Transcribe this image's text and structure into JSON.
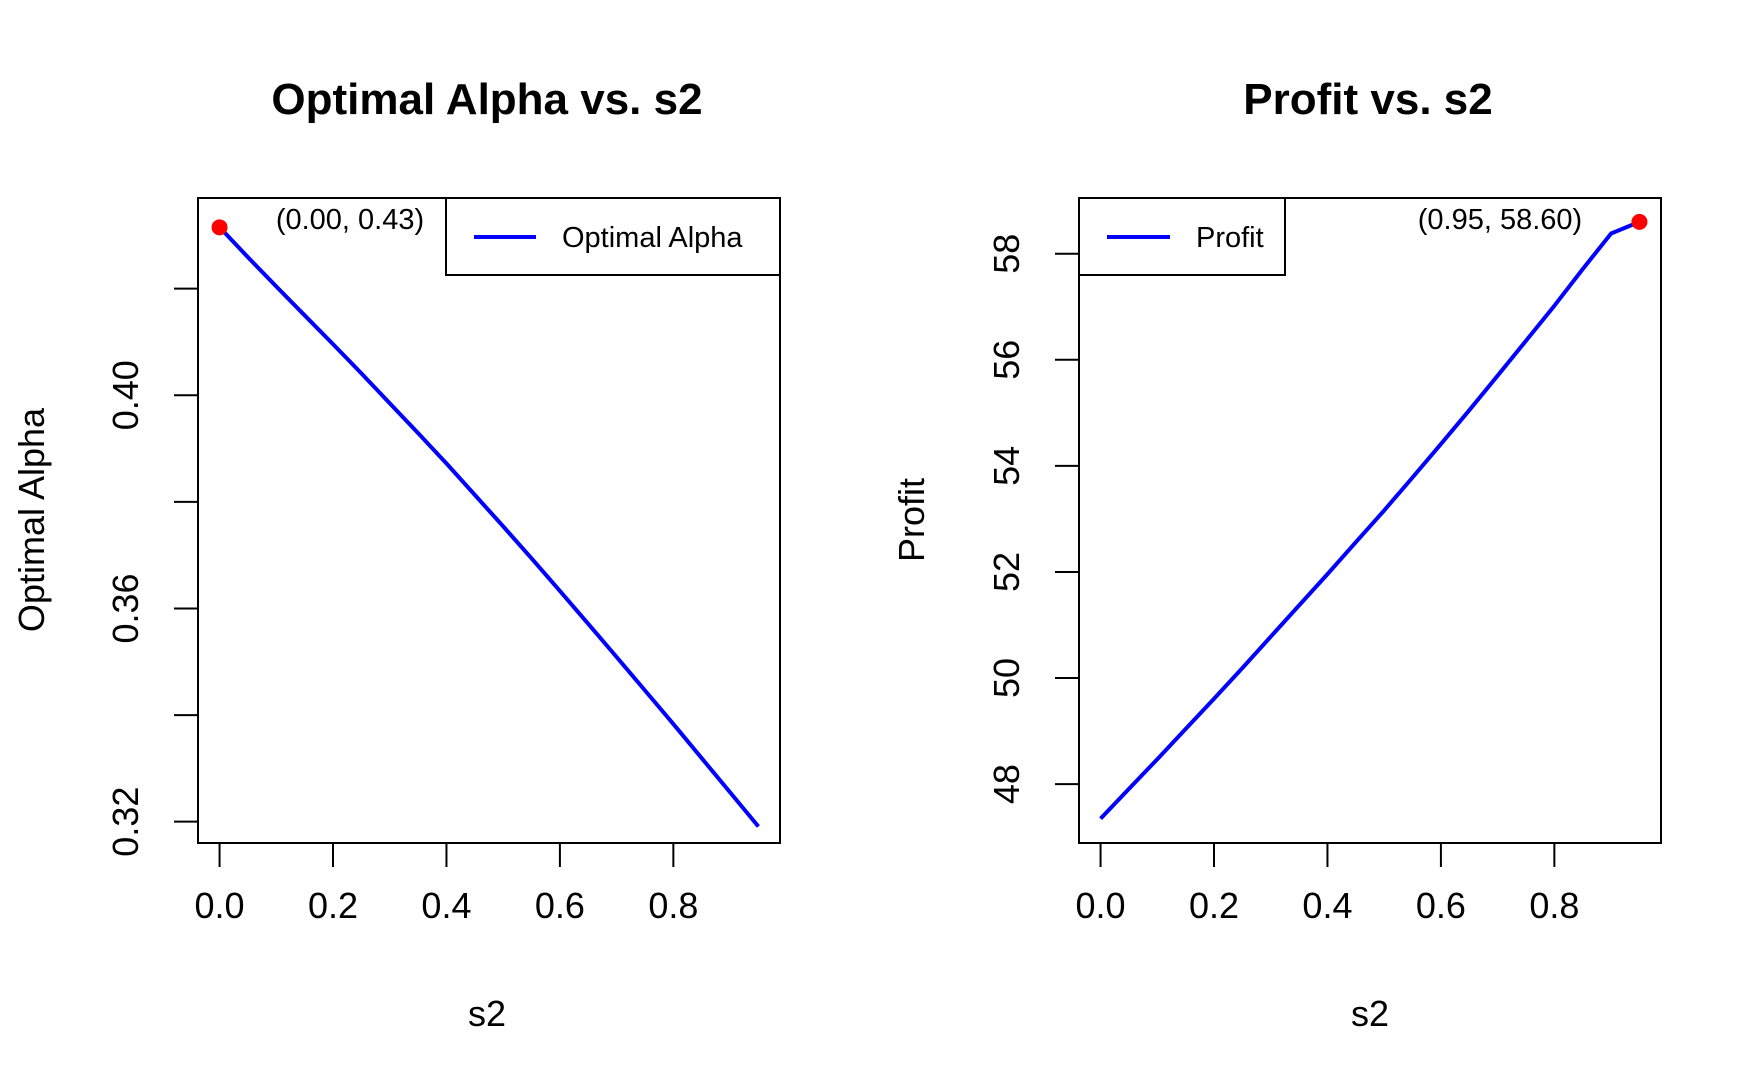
{
  "chart_data": [
    {
      "type": "line",
      "title": "Optimal Alpha vs. s2",
      "xlabel": "s2",
      "ylabel": "Optimal Alpha",
      "xlim": [
        -0.038,
        0.988
      ],
      "ylim": [
        0.316,
        0.437
      ],
      "xticks": [
        0.0,
        0.2,
        0.4,
        0.6,
        0.8
      ],
      "xtick_labels": [
        "0.0",
        "0.2",
        "0.4",
        "0.6",
        "0.8"
      ],
      "yticks": [
        0.32,
        0.34,
        0.36,
        0.38,
        0.4,
        0.42
      ],
      "ytick_labels": [
        "0.32",
        "",
        "0.36",
        "",
        "0.40",
        ""
      ],
      "series": [
        {
          "name": "Optimal Alpha",
          "color": "#0000ff",
          "x": [
            0.0,
            0.05,
            0.1,
            0.15,
            0.2,
            0.25,
            0.3,
            0.35,
            0.4,
            0.45,
            0.5,
            0.55,
            0.6,
            0.65,
            0.7,
            0.75,
            0.8,
            0.85,
            0.9,
            0.95
          ],
          "y": [
            0.4315,
            0.4259,
            0.4204,
            0.415,
            0.4096,
            0.4041,
            0.3985,
            0.3929,
            0.3872,
            0.3813,
            0.3754,
            0.3694,
            0.3633,
            0.3571,
            0.3509,
            0.3446,
            0.3383,
            0.3319,
            0.3255,
            0.3191
          ]
        }
      ],
      "highlight_point": {
        "x": 0.0,
        "y": 0.4315,
        "color": "#ff0000",
        "label": "(0.00, 0.43)"
      },
      "legend": {
        "position": "top-right",
        "entries": [
          "Optimal Alpha"
        ]
      }
    },
    {
      "type": "line",
      "title": "Profit vs. s2",
      "xlabel": "s2",
      "ylabel": "Profit",
      "xlim": [
        -0.038,
        0.988
      ],
      "ylim": [
        46.89,
        59.05
      ],
      "xticks": [
        0.0,
        0.2,
        0.4,
        0.6,
        0.8
      ],
      "xtick_labels": [
        "0.0",
        "0.2",
        "0.4",
        "0.6",
        "0.8"
      ],
      "yticks": [
        48,
        50,
        52,
        54,
        56,
        58
      ],
      "ytick_labels": [
        "48",
        "50",
        "52",
        "54",
        "56",
        "58"
      ],
      "series": [
        {
          "name": "Profit",
          "color": "#0000ff",
          "x": [
            0.0,
            0.05,
            0.1,
            0.15,
            0.2,
            0.25,
            0.3,
            0.35,
            0.4,
            0.45,
            0.5,
            0.55,
            0.6,
            0.65,
            0.7,
            0.75,
            0.8,
            0.85,
            0.9,
            0.95
          ],
          "y": [
            47.35,
            47.91,
            48.47,
            49.04,
            49.61,
            50.19,
            50.78,
            51.37,
            51.96,
            52.56,
            53.16,
            53.78,
            54.41,
            55.05,
            55.7,
            56.36,
            57.02,
            57.71,
            58.38,
            58.6
          ]
        }
      ],
      "highlight_point": {
        "x": 0.95,
        "y": 58.6,
        "color": "#ff0000",
        "label": "(0.95, 58.60)"
      },
      "legend": {
        "position": "top-left",
        "entries": [
          "Profit"
        ]
      }
    }
  ]
}
